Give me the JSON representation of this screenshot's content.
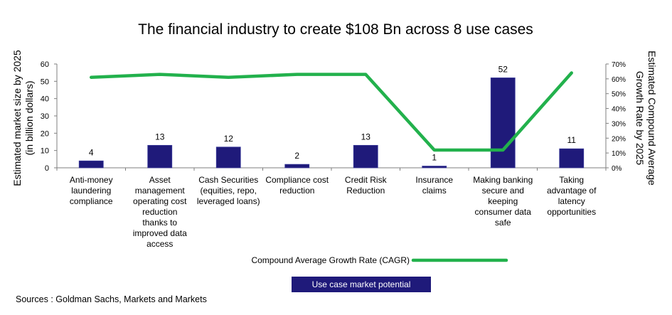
{
  "chart_data": {
    "type": "bar",
    "title": "The financial industry to create $108 Bn across 8 use cases",
    "categories": [
      [
        "Anti-money",
        "laundering",
        "compliance"
      ],
      [
        "Asset",
        "management",
        "operating cost",
        "reduction",
        "thanks to",
        "improved data",
        "access"
      ],
      [
        "Cash Securities",
        "(equities, repo,",
        "leveraged loans)"
      ],
      [
        "Compliance cost",
        "reduction"
      ],
      [
        "Credit Risk",
        "Reduction"
      ],
      [
        "Insurance",
        "claims"
      ],
      [
        "Making banking",
        "secure and",
        "keeping",
        "consumer data",
        "safe"
      ],
      [
        "Taking",
        "advantage of",
        "latency",
        "opportunities"
      ]
    ],
    "series": [
      {
        "name": "Use case market potential",
        "type": "bar",
        "axis": "left",
        "color": "#1f1a7a",
        "values": [
          4,
          13,
          12,
          2,
          13,
          1,
          52,
          11
        ]
      },
      {
        "name": "Compound Average Growth Rate (CAGR)",
        "type": "line",
        "axis": "right",
        "color": "#22b14c",
        "values": [
          61,
          63,
          61,
          63,
          63,
          12,
          12,
          64
        ]
      }
    ],
    "data_labels": [
      "4",
      "13",
      "12",
      "2",
      "13",
      "1",
      "52",
      "11"
    ],
    "ylabel": [
      "Estimated market size by 2025",
      "(in billion dollars)"
    ],
    "ylim": [
      0,
      60
    ],
    "yticks": [
      0,
      10,
      20,
      30,
      40,
      50,
      60
    ],
    "y2label": [
      "Estimated Compound Average",
      "Growth Rate by 2025"
    ],
    "y2lim": [
      0,
      70
    ],
    "y2ticks": [
      "0%",
      "10%",
      "20%",
      "30%",
      "40%",
      "50%",
      "60%",
      "70%"
    ],
    "grid": false,
    "legend_position": "bottom"
  },
  "source": "Sources : Goldman Sachs, Markets and Markets"
}
